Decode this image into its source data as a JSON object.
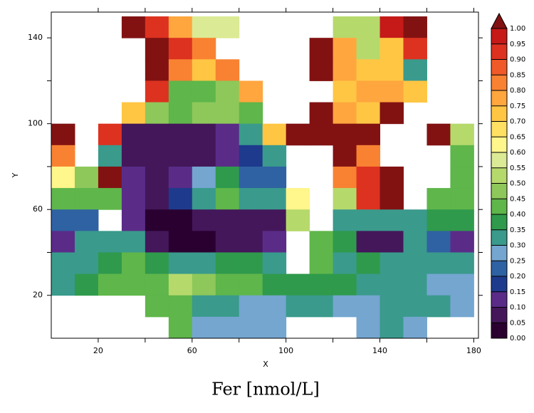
{
  "chart_data": {
    "type": "heatmap",
    "title": "Fer [nmol/L]",
    "x_label": "X",
    "y_label": "Y",
    "xlim": [
      0,
      182
    ],
    "ylim": [
      0,
      152
    ],
    "xticks": [
      20,
      60,
      100,
      140,
      180
    ],
    "xminor_ticks": [
      40,
      80,
      120,
      160
    ],
    "yticks": [
      20,
      60,
      100,
      140
    ],
    "yminor_ticks": [
      40,
      80,
      120
    ],
    "x": [
      5,
      15,
      25,
      35,
      45,
      55,
      65,
      75,
      85,
      95,
      105,
      115,
      125,
      135,
      145,
      155,
      165,
      175
    ],
    "y": [
      145,
      135,
      125,
      115,
      105,
      95,
      85,
      75,
      65,
      55,
      45,
      35,
      25,
      15,
      5
    ],
    "z": [
      [
        null,
        null,
        null,
        1.0,
        0.9,
        0.75,
        0.55,
        0.55,
        null,
        null,
        null,
        null,
        0.5,
        0.5,
        0.95,
        1.0,
        null,
        null
      ],
      [
        null,
        null,
        null,
        null,
        1.0,
        0.9,
        0.8,
        null,
        null,
        null,
        null,
        1.0,
        0.75,
        0.5,
        0.7,
        0.9,
        null,
        null
      ],
      [
        null,
        null,
        null,
        null,
        1.0,
        0.8,
        0.7,
        0.8,
        null,
        null,
        null,
        1.0,
        0.75,
        0.7,
        0.7,
        0.3,
        null,
        null
      ],
      [
        null,
        null,
        null,
        null,
        0.9,
        0.4,
        0.4,
        0.45,
        0.75,
        null,
        null,
        null,
        0.7,
        0.75,
        0.75,
        0.7,
        null,
        null
      ],
      [
        null,
        null,
        null,
        0.7,
        0.45,
        0.4,
        0.45,
        0.45,
        0.4,
        null,
        null,
        1.0,
        0.75,
        0.7,
        1.0,
        null,
        null,
        null
      ],
      [
        1.0,
        null,
        0.9,
        0.05,
        0.05,
        0.05,
        0.05,
        0.1,
        0.3,
        0.7,
        1.0,
        1.0,
        1.0,
        1.0,
        null,
        null,
        1.0,
        0.5
      ],
      [
        0.8,
        null,
        0.3,
        0.05,
        0.05,
        0.05,
        0.05,
        0.1,
        0.15,
        0.3,
        null,
        null,
        1.0,
        0.8,
        null,
        null,
        null,
        0.4
      ],
      [
        0.6,
        0.45,
        1.0,
        0.1,
        0.05,
        0.1,
        0.25,
        0.35,
        0.2,
        0.2,
        null,
        null,
        0.8,
        0.9,
        1.0,
        null,
        null,
        0.4
      ],
      [
        0.4,
        0.4,
        0.4,
        0.1,
        0.05,
        0.15,
        0.3,
        0.4,
        0.3,
        0.3,
        0.6,
        null,
        0.5,
        0.9,
        1.0,
        null,
        0.4,
        0.4
      ],
      [
        0.2,
        0.2,
        null,
        0.1,
        0.0,
        0.0,
        0.05,
        0.05,
        0.05,
        0.05,
        0.5,
        null,
        0.3,
        0.3,
        0.3,
        0.3,
        0.35,
        0.35
      ],
      [
        0.1,
        0.3,
        0.3,
        0.3,
        0.05,
        0.0,
        0.0,
        0.05,
        0.05,
        0.1,
        null,
        0.4,
        0.35,
        0.05,
        0.05,
        0.3,
        0.2,
        0.1
      ],
      [
        0.3,
        0.3,
        0.35,
        0.4,
        0.35,
        0.3,
        0.3,
        0.35,
        0.35,
        0.3,
        null,
        0.4,
        0.3,
        0.35,
        0.3,
        0.3,
        0.3,
        0.3
      ],
      [
        0.3,
        0.35,
        0.4,
        0.4,
        0.4,
        0.5,
        0.45,
        0.4,
        0.4,
        0.35,
        0.35,
        0.35,
        0.35,
        0.3,
        0.3,
        0.3,
        0.25,
        0.25
      ],
      [
        null,
        null,
        null,
        null,
        0.4,
        0.4,
        0.3,
        0.3,
        0.25,
        0.25,
        0.3,
        0.3,
        0.25,
        0.25,
        0.3,
        0.3,
        0.3,
        0.25
      ],
      [
        null,
        null,
        null,
        null,
        null,
        0.4,
        0.25,
        0.25,
        0.25,
        0.25,
        null,
        null,
        null,
        0.25,
        0.3,
        0.25,
        null,
        null
      ]
    ],
    "colorbar_ticks": [
      {
        "value": 0,
        "label": "0.00"
      },
      {
        "value": 0.05,
        "label": "0.05"
      },
      {
        "value": 0.1,
        "label": "0.10"
      },
      {
        "value": 0.15,
        "label": "0.15"
      },
      {
        "value": 0.2,
        "label": "0.20"
      },
      {
        "value": 0.25,
        "label": "0.25"
      },
      {
        "value": 0.3,
        "label": "0.30"
      },
      {
        "value": 0.35,
        "label": "0.35"
      },
      {
        "value": 0.4,
        "label": "0.40"
      },
      {
        "value": 0.45,
        "label": "0.45"
      },
      {
        "value": 0.5,
        "label": "0.50"
      },
      {
        "value": 0.55,
        "label": "0.55"
      },
      {
        "value": 0.6,
        "label": "0.60"
      },
      {
        "value": 0.65,
        "label": "0.65"
      },
      {
        "value": 0.7,
        "label": "0.70"
      },
      {
        "value": 0.75,
        "label": "0.75"
      },
      {
        "value": 0.8,
        "label": "0.80"
      },
      {
        "value": 0.85,
        "label": "0.85"
      },
      {
        "value": 0.9,
        "label": "0.90"
      },
      {
        "value": 0.95,
        "label": "0.95"
      },
      {
        "value": 1,
        "label": "1.00"
      }
    ],
    "colors": [
      "#2a0030",
      "#44175a",
      "#5a2c88",
      "#1e3a8c",
      "#2f62a2",
      "#74a6d0",
      "#3a9a8c",
      "#2f9a4c",
      "#5fb64a",
      "#8ec85a",
      "#b6d96c",
      "#dbea94",
      "#fff68c",
      "#ffe062",
      "#ffc644",
      "#ffa63e",
      "#f88232",
      "#ef5a28",
      "#dd3220",
      "#c51a18",
      "#821212"
    ]
  }
}
